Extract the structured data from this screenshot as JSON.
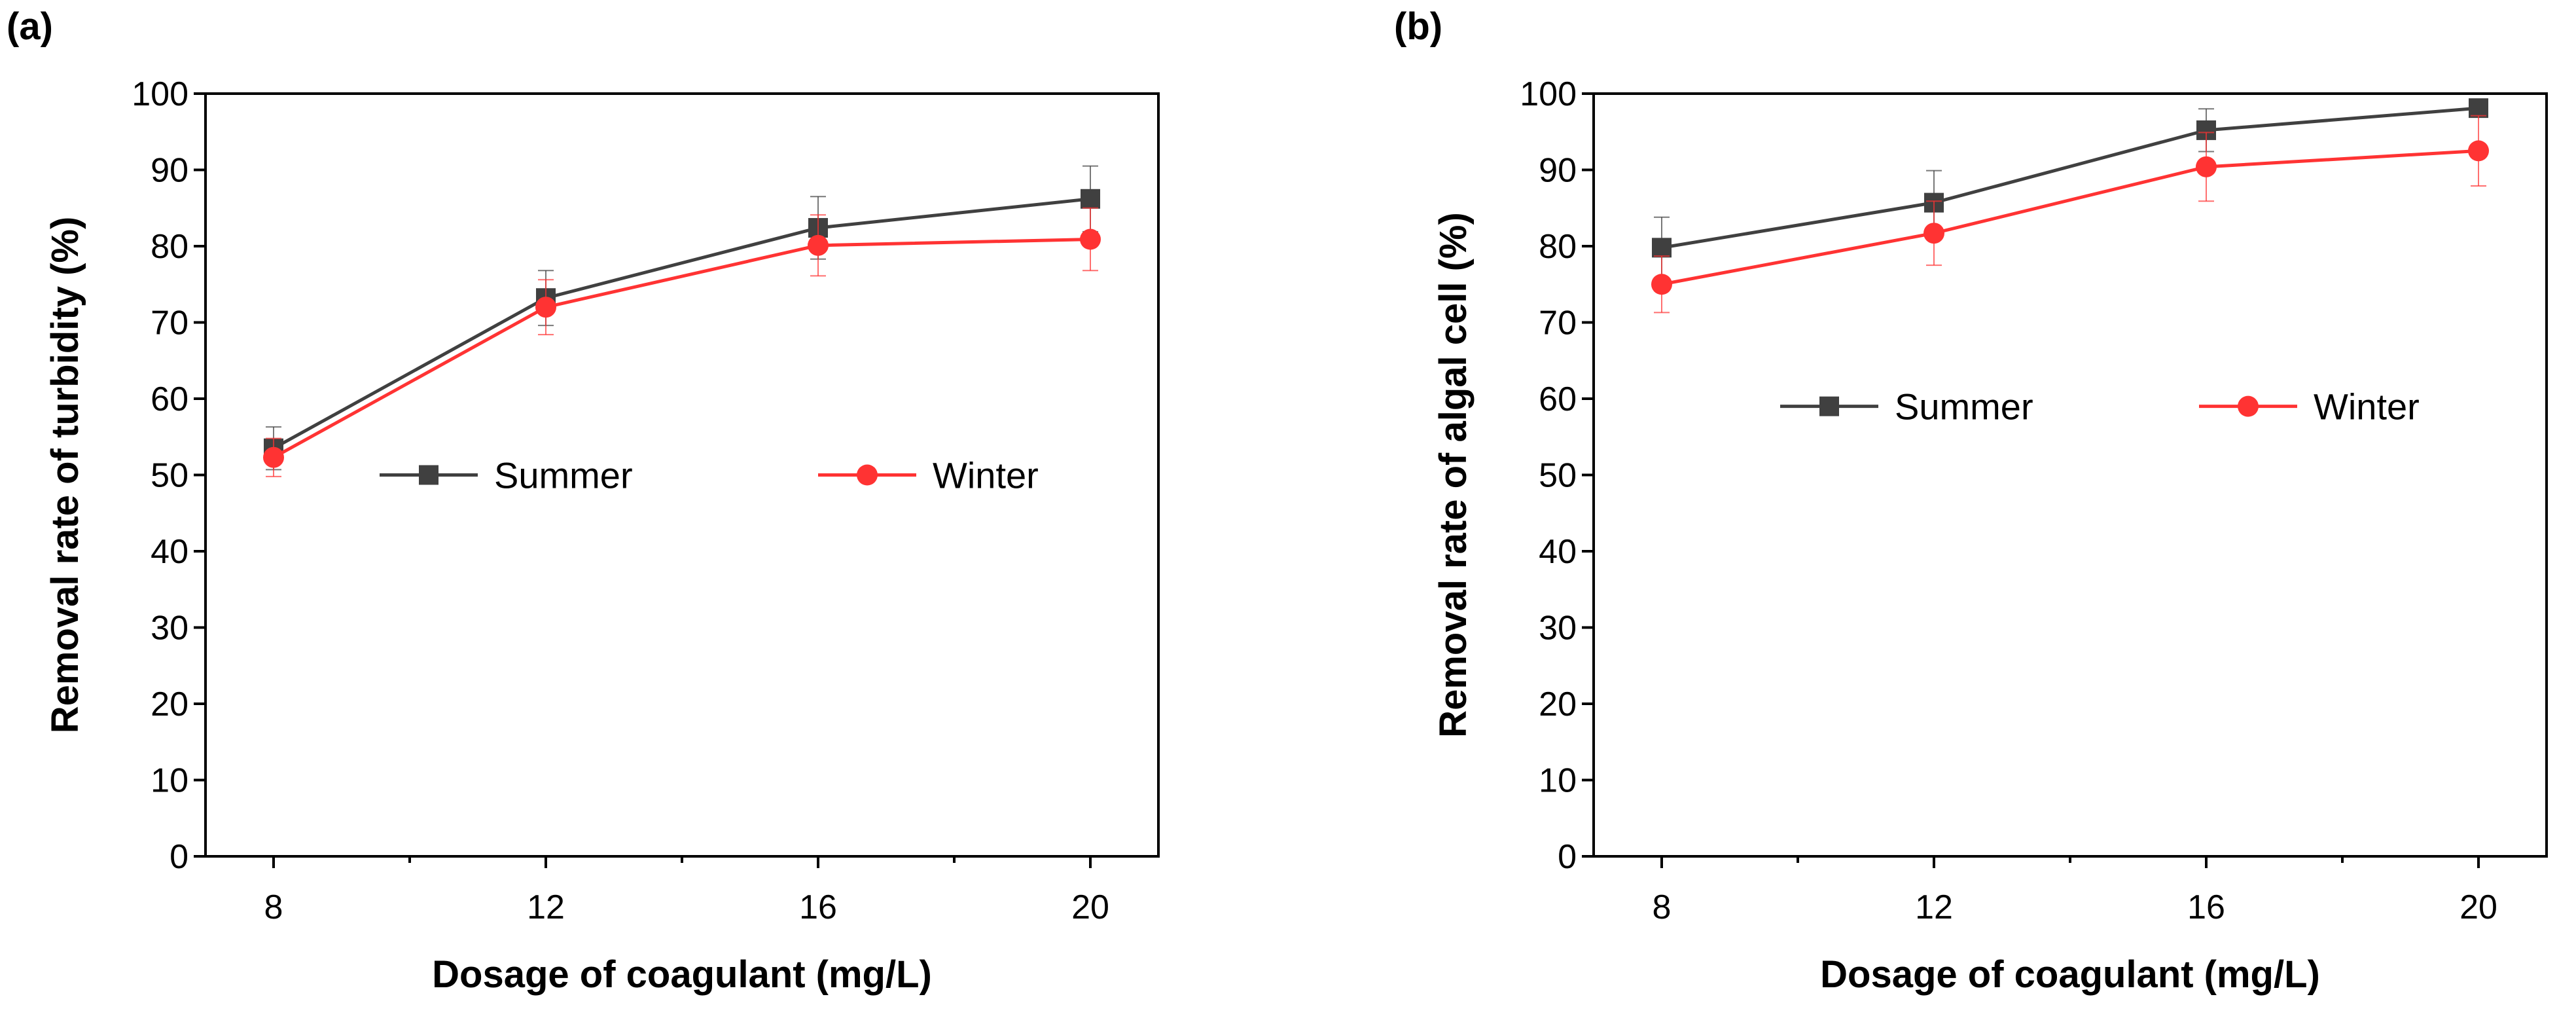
{
  "chart_data": [
    {
      "panel_label": "(a)",
      "type": "line",
      "xlabel": "Dosage of coagulant (mg/L)",
      "ylabel": "Removal rate of turbidity (%)",
      "x": [
        8,
        12,
        16,
        20
      ],
      "xticks": [
        "8",
        "12",
        "16",
        "20"
      ],
      "xlim": [
        7,
        21
      ],
      "ylim": [
        0,
        100
      ],
      "yticks": [
        "0",
        "10",
        "20",
        "30",
        "40",
        "50",
        "60",
        "70",
        "80",
        "90",
        "100"
      ],
      "grid": false,
      "legend": "center",
      "series": [
        {
          "name": "Summer",
          "color": "#404040",
          "marker": "square",
          "values": [
            53.5,
            73.2,
            82.4,
            86.2
          ],
          "errors": [
            2.8,
            3.6,
            4.1,
            4.3
          ]
        },
        {
          "name": "Winter",
          "color": "#ff3333",
          "marker": "circle",
          "values": [
            52.3,
            72.0,
            80.1,
            80.9
          ],
          "errors": [
            2.5,
            3.6,
            4.0,
            4.1
          ]
        }
      ]
    },
    {
      "panel_label": "(b)",
      "type": "line",
      "xlabel": "Dosage of coagulant (mg/L)",
      "ylabel": "Removal rate of algal cell (%)",
      "x": [
        8,
        12,
        16,
        20
      ],
      "xticks": [
        "8",
        "12",
        "16",
        "20"
      ],
      "xlim": [
        7,
        21
      ],
      "ylim": [
        0,
        100
      ],
      "yticks": [
        "0",
        "10",
        "20",
        "30",
        "40",
        "50",
        "60",
        "70",
        "80",
        "90",
        "100"
      ],
      "grid": false,
      "legend": "center",
      "series": [
        {
          "name": "Summer",
          "color": "#404040",
          "marker": "square",
          "values": [
            79.8,
            85.7,
            95.2,
            98.1
          ],
          "errors": [
            4.0,
            4.2,
            2.8,
            1.0
          ]
        },
        {
          "name": "Winter",
          "color": "#ff3333",
          "marker": "circle",
          "values": [
            75.0,
            81.7,
            90.4,
            92.5
          ],
          "errors": [
            3.7,
            4.2,
            4.5,
            4.6
          ]
        }
      ]
    }
  ]
}
